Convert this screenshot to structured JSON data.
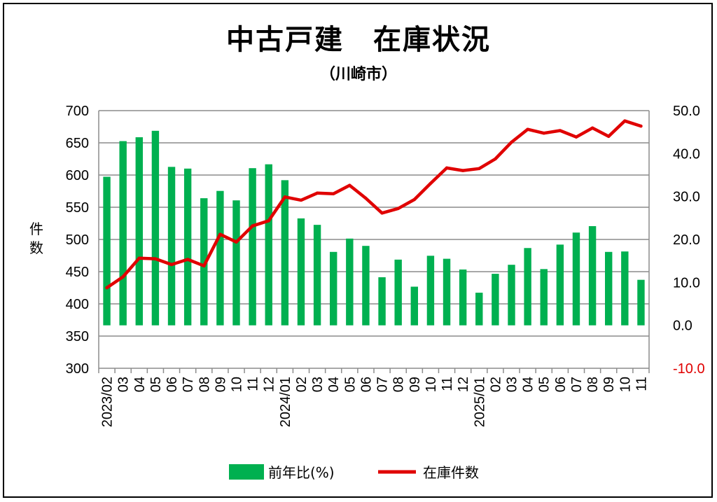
{
  "chart_data": {
    "type": "bar",
    "title": "中古戸建　在庫状況",
    "subtitle": "（川崎市）",
    "xlabel": "",
    "ylabel_left": "件数",
    "ylabel_right": "",
    "categories": [
      "2023/02",
      "03",
      "04",
      "05",
      "06",
      "07",
      "08",
      "09",
      "10",
      "11",
      "12",
      "2024/01",
      "02",
      "03",
      "04",
      "05",
      "06",
      "07",
      "08",
      "09",
      "10",
      "11",
      "12",
      "2025/01",
      "02",
      "03",
      "04",
      "05",
      "06",
      "07",
      "08",
      "09",
      "10",
      "11"
    ],
    "series": [
      {
        "name": "前年比(%)",
        "type": "bar",
        "axis": "right",
        "color": "#00b050",
        "values": [
          34.6,
          42.9,
          43.8,
          45.3,
          36.9,
          36.5,
          29.6,
          31.3,
          29.1,
          36.6,
          37.5,
          33.8,
          24.9,
          23.4,
          17.1,
          20.2,
          18.5,
          11.2,
          15.3,
          9.0,
          16.2,
          15.5,
          13.0,
          7.6,
          12.0,
          14.1,
          18.0,
          13.1,
          18.8,
          21.6,
          23.1,
          17.1,
          17.2,
          10.6
        ]
      },
      {
        "name": "在庫件数",
        "type": "line",
        "axis": "left",
        "color": "#e00000",
        "values": [
          425,
          442,
          471,
          470,
          461,
          469,
          459,
          508,
          496,
          521,
          529,
          566,
          561,
          572,
          571,
          584,
          564,
          541,
          548,
          562,
          587,
          611,
          607,
          610,
          625,
          651,
          671,
          665,
          669,
          659,
          673,
          660,
          684,
          676
        ]
      }
    ],
    "ylim_left": [
      300,
      700
    ],
    "yticks_left": [
      "700",
      "650",
      "600",
      "550",
      "500",
      "450",
      "400",
      "350",
      "300"
    ],
    "ylim_right": [
      -10,
      50
    ],
    "yticks_right": [
      "50.0",
      "40.0",
      "30.0",
      "20.0",
      "10.0",
      "0.0",
      "-10.0"
    ],
    "grid": true,
    "legend_position": "bottom"
  }
}
